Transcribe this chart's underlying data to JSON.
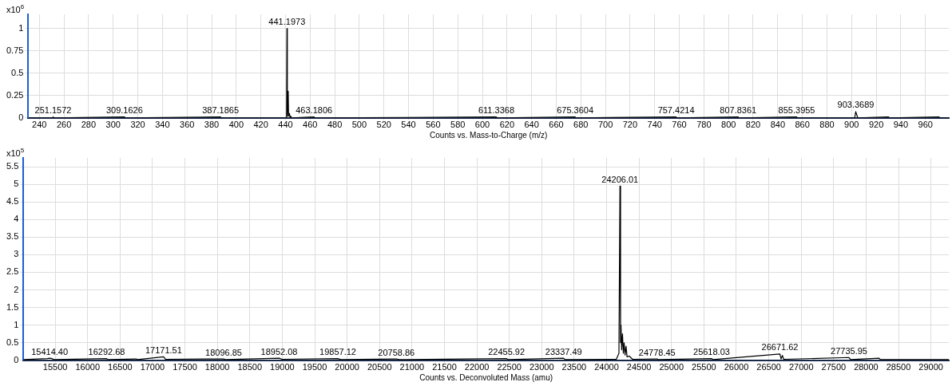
{
  "chart_data": [
    {
      "type": "line",
      "xlabel": "Counts vs. Mass-to-Charge (m/z)",
      "ylabel": "x10$^{6}$",
      "xlim": [
        231,
        979
      ],
      "ylim": [
        0,
        1.16
      ],
      "xticks": [
        240,
        260,
        280,
        300,
        320,
        340,
        360,
        380,
        400,
        420,
        440,
        460,
        480,
        500,
        520,
        540,
        560,
        580,
        600,
        620,
        640,
        660,
        680,
        700,
        720,
        740,
        760,
        780,
        800,
        820,
        840,
        860,
        880,
        900,
        920,
        940,
        960
      ],
      "yticks": [
        0,
        0.25,
        0.5,
        0.75,
        1
      ],
      "grid": true,
      "legend": false,
      "marker": "none",
      "series": [
        {
          "color": "#000000",
          "x": [
            231,
            250.5,
            251.16,
            252,
            309.16,
            310,
            387.19,
            388,
            440.9,
            441.2,
            441.5,
            442.2,
            442.5,
            443.2,
            443.6,
            444.2,
            445,
            463.18,
            464,
            611.34,
            612,
            675.36,
            676,
            757.42,
            758,
            807.84,
            808.5,
            855.4,
            856,
            902.5,
            903.37,
            904.3,
            905,
            930,
            931,
            971,
            972,
            979
          ],
          "values": [
            0,
            0,
            0.01,
            0,
            0.01,
            0,
            0.01,
            0,
            0,
            1.0,
            0.02,
            0.3,
            0.02,
            0.05,
            0.01,
            0.02,
            0,
            0.01,
            0,
            0.01,
            0,
            0.01,
            0,
            0.01,
            0,
            0.01,
            0,
            0.01,
            0,
            0,
            0.07,
            0.03,
            0,
            0.01,
            0,
            0.01,
            0,
            0
          ]
        }
      ],
      "annotations": [
        {
          "text": "251.1572",
          "x": 251.16,
          "y": 0.01
        },
        {
          "text": "309.1626",
          "x": 309.16,
          "y": 0.01
        },
        {
          "text": "387.1865",
          "x": 387.19,
          "y": 0.01
        },
        {
          "text": "441.1973",
          "x": 441.2,
          "y": 1.0
        },
        {
          "text": "463.1806",
          "x": 463.18,
          "y": 0.01
        },
        {
          "text": "611.3368",
          "x": 611.34,
          "y": 0.01
        },
        {
          "text": "675.3604",
          "x": 675.36,
          "y": 0.01
        },
        {
          "text": "757.4214",
          "x": 757.42,
          "y": 0.01
        },
        {
          "text": "807.8361",
          "x": 807.84,
          "y": 0.01
        },
        {
          "text": "855.3955",
          "x": 855.4,
          "y": 0.01
        },
        {
          "text": "903.3689",
          "x": 903.37,
          "y": 0.07
        }
      ]
    },
    {
      "type": "line",
      "xlabel": "Counts vs. Deconvoluted Mass (amu)",
      "ylabel": "x10$^{5}$",
      "xlim": [
        15010,
        29275
      ],
      "ylim": [
        0,
        5.75
      ],
      "xticks": [
        15500,
        16000,
        16500,
        17000,
        17500,
        18000,
        18500,
        19000,
        19500,
        20000,
        20500,
        21000,
        21500,
        22000,
        22500,
        23000,
        23500,
        24000,
        24500,
        25000,
        25500,
        26000,
        26500,
        27000,
        27500,
        28000,
        28500,
        29000
      ],
      "yticks": [
        0,
        0.5,
        1,
        1.5,
        2,
        2.5,
        3,
        3.5,
        4,
        4.5,
        5,
        5.5
      ],
      "grid": true,
      "legend": false,
      "marker": "none",
      "series": [
        {
          "color": "#000000",
          "x": [
            15010,
            15380,
            15414.4,
            15450,
            15480,
            16292.68,
            16310,
            16750,
            16770,
            17171.51,
            17200,
            18096.85,
            18120,
            18952.08,
            19000,
            19857.12,
            19900,
            20758.86,
            20800,
            22455.92,
            22480,
            23337.49,
            23360,
            24150,
            24190,
            24206.01,
            24215,
            24222,
            24232,
            24245,
            24258,
            24270,
            24285,
            24300,
            24315,
            24350,
            24400,
            24778.45,
            24800,
            25618.03,
            25640,
            26671.62,
            26690,
            26710,
            26730,
            27735.95,
            27760,
            28200,
            28220,
            29000,
            29275
          ],
          "values": [
            0.02,
            0.05,
            0.06,
            0.05,
            0.02,
            0.05,
            0.02,
            0.04,
            0.02,
            0.1,
            0.03,
            0.04,
            0.02,
            0.06,
            0.03,
            0.05,
            0.02,
            0.04,
            0.02,
            0.05,
            0.02,
            0.06,
            0.02,
            0.03,
            0.2,
            4.95,
            0.5,
            1.0,
            0.3,
            0.75,
            0.2,
            0.5,
            0.15,
            0.4,
            0.1,
            0.12,
            0.03,
            0.04,
            0.02,
            0.05,
            0.02,
            0.18,
            0.04,
            0.14,
            0.03,
            0.08,
            0.02,
            0.06,
            0.02,
            0.02,
            0.02
          ]
        }
      ],
      "annotations": [
        {
          "text": "15414.40",
          "x": 15414.4,
          "y": 0.06
        },
        {
          "text": "16292.68",
          "x": 16292.68,
          "y": 0.05
        },
        {
          "text": "17171.51",
          "x": 17171.51,
          "y": 0.1
        },
        {
          "text": "18096.85",
          "x": 18096.85,
          "y": 0.04
        },
        {
          "text": "18952.08",
          "x": 18952.08,
          "y": 0.06
        },
        {
          "text": "19857.12",
          "x": 19857.12,
          "y": 0.05
        },
        {
          "text": "20758.86",
          "x": 20758.86,
          "y": 0.04
        },
        {
          "text": "22455.92",
          "x": 22455.92,
          "y": 0.05
        },
        {
          "text": "23337.49",
          "x": 23337.49,
          "y": 0.06
        },
        {
          "text": "24206.01",
          "x": 24206.01,
          "y": 4.95
        },
        {
          "text": "24778.45",
          "x": 24778.45,
          "y": 0.04
        },
        {
          "text": "25618.03",
          "x": 25618.03,
          "y": 0.05
        },
        {
          "text": "26671.62",
          "x": 26671.62,
          "y": 0.18
        },
        {
          "text": "27735.95",
          "x": 27735.95,
          "y": 0.08
        }
      ]
    }
  ]
}
